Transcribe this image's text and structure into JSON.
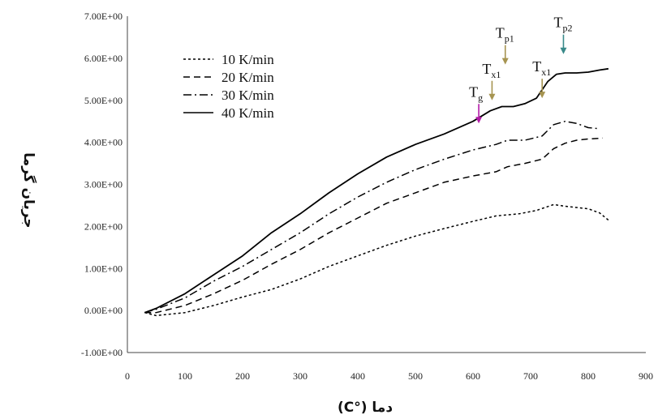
{
  "chart_data": {
    "type": "line",
    "xlabel": "دما (°C)",
    "ylabel": "جریان گرما",
    "xlim": [
      0,
      900
    ],
    "ylim": [
      -1,
      7
    ],
    "x_ticks": [
      "0",
      "100",
      "200",
      "300",
      "400",
      "500",
      "600",
      "700",
      "800",
      "900"
    ],
    "y_ticks": [
      "-1.00E+00",
      "0.00E+00",
      "1.00E+00",
      "2.00E+00",
      "3.00E+00",
      "4.00E+00",
      "5.00E+00",
      "6.00E+00",
      "7.00E+00"
    ],
    "grid": false,
    "legend_position": "top-left",
    "series": [
      {
        "name": "10 K/min",
        "dash": "3,3",
        "x": [
          30,
          50,
          100,
          150,
          200,
          250,
          300,
          350,
          400,
          450,
          500,
          550,
          600,
          640,
          680,
          710,
          740,
          760,
          800,
          820,
          835
        ],
        "y": [
          -0.05,
          -0.12,
          -0.05,
          0.12,
          0.32,
          0.5,
          0.75,
          1.05,
          1.3,
          1.55,
          1.77,
          1.95,
          2.12,
          2.25,
          2.3,
          2.38,
          2.52,
          2.48,
          2.42,
          2.32,
          2.15
        ]
      },
      {
        "name": "20 K/min",
        "dash": "8,5",
        "x": [
          30,
          50,
          100,
          150,
          200,
          250,
          300,
          350,
          400,
          450,
          500,
          550,
          600,
          640,
          660,
          690,
          720,
          740,
          760,
          780,
          800,
          825
        ],
        "y": [
          -0.05,
          -0.05,
          0.12,
          0.4,
          0.72,
          1.1,
          1.45,
          1.85,
          2.2,
          2.55,
          2.8,
          3.05,
          3.2,
          3.3,
          3.42,
          3.5,
          3.6,
          3.85,
          3.98,
          4.05,
          4.08,
          4.1
        ]
      },
      {
        "name": "30 K/min",
        "dash": "10,4,2,4",
        "x": [
          30,
          50,
          100,
          150,
          200,
          250,
          300,
          350,
          400,
          450,
          500,
          550,
          600,
          640,
          660,
          690,
          720,
          740,
          760,
          780,
          800,
          815
        ],
        "y": [
          -0.05,
          0.03,
          0.3,
          0.7,
          1.05,
          1.45,
          1.85,
          2.3,
          2.7,
          3.05,
          3.35,
          3.6,
          3.82,
          3.95,
          4.05,
          4.05,
          4.15,
          4.42,
          4.5,
          4.45,
          4.35,
          4.33
        ]
      },
      {
        "name": "40 K/min",
        "dash": "",
        "x": [
          30,
          50,
          100,
          150,
          200,
          250,
          300,
          350,
          400,
          450,
          500,
          550,
          600,
          630,
          650,
          670,
          690,
          710,
          730,
          745,
          760,
          780,
          800,
          820,
          835
        ],
        "y": [
          -0.05,
          0.05,
          0.4,
          0.85,
          1.3,
          1.85,
          2.3,
          2.8,
          3.25,
          3.65,
          3.95,
          4.2,
          4.5,
          4.75,
          4.85,
          4.85,
          4.92,
          5.05,
          5.45,
          5.62,
          5.65,
          5.65,
          5.67,
          5.72,
          5.75
        ]
      }
    ],
    "annotations": [
      {
        "main": "T",
        "sub": "g",
        "x": 610,
        "y": 4.45,
        "color": "#b31aa8"
      },
      {
        "main": "T",
        "sub": "x1",
        "x": 633,
        "y": 5.0,
        "color": "#a69451"
      },
      {
        "main": "T",
        "sub": "p1",
        "x": 656,
        "y": 5.85,
        "color": "#a69451"
      },
      {
        "main": "T",
        "sub": "x1",
        "x": 720,
        "y": 5.05,
        "color": "#a69451"
      },
      {
        "main": "T",
        "sub": "p2",
        "x": 757,
        "y": 6.1,
        "color": "#3a8a8a"
      }
    ]
  }
}
